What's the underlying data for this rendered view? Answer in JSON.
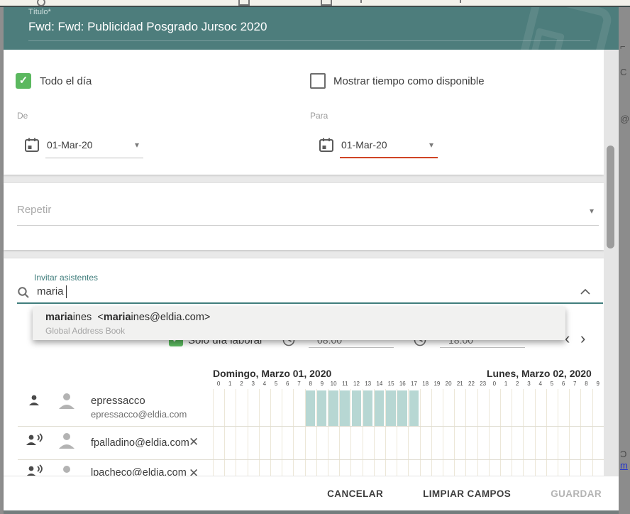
{
  "colors": {
    "accent_teal": "#4d7d7c",
    "accent_teal_dark": "#417e7d",
    "checkbox_green": "#5bb85f",
    "error_underline": "#cf4425",
    "busy_cell": "#b7d7d3",
    "link_blue": "#2233cc"
  },
  "background": {
    "fragments": [
      "⌐",
      "C",
      "@",
      "Ɔ",
      "m"
    ]
  },
  "dialog": {
    "header": {
      "field_label": "Título*",
      "title": "Fwd: Fwd: Publicidad Posgrado Jursoc 2020"
    },
    "datetime": {
      "allday_label": "Todo el día",
      "allday_check": "✓",
      "show_as_available_label": "Mostrar tiempo como disponible",
      "from_label": "De",
      "to_label": "Para",
      "from_date": "01-Mar-20",
      "to_date": "01-Mar-20",
      "caret": "▾"
    },
    "repeat": {
      "placeholder": "Repetir",
      "caret": "▾"
    },
    "attendees_section": {
      "label": "Invitar asistentes",
      "query": "maria"
    },
    "autocomplete": {
      "parts": [
        {
          "t": "maria",
          "b": true
        },
        {
          "t": "ines  <",
          "b": false
        },
        {
          "t": "maria",
          "b": true
        },
        {
          "t": "ines@eldia.com>",
          "b": false
        }
      ],
      "source": "Global Address Book"
    },
    "workday": {
      "label": "Sólo día laboral",
      "check": "✓",
      "start": "08:00",
      "end": "18:00",
      "prev": "‹",
      "next": "›"
    },
    "footer": {
      "cancel": "CANCELAR",
      "clear": "LIMPIAR CAMPOS",
      "save": "GUARDAR"
    }
  },
  "scheduler": {
    "day1_header": "Domingo, Marzo 01, 2020",
    "day2_header": "Lunes, Marzo 02, 2020",
    "hours_day1": [
      "0",
      "1",
      "2",
      "3",
      "4",
      "5",
      "6",
      "7",
      "8",
      "9",
      "10",
      "11",
      "12",
      "13",
      "14",
      "15",
      "16",
      "17",
      "18",
      "19",
      "20",
      "21",
      "22",
      "23"
    ],
    "hours_day2": [
      "0",
      "1",
      "2",
      "3",
      "4",
      "5",
      "6",
      "7",
      "8",
      "9",
      "10"
    ],
    "busy_blocks": [
      {
        "attendee": "epressacco",
        "day": 1,
        "from_hour": 8,
        "to_hour": 18
      }
    ],
    "attendees": [
      {
        "name": "epressacco",
        "email": "epressacco@eldia.com",
        "role": "organizer",
        "removable": false,
        "remove_glyph": ""
      },
      {
        "name": "",
        "email": "fpalladino@eldia.com",
        "role": "attendee",
        "removable": true,
        "remove_glyph": "✕"
      },
      {
        "name": "",
        "email": "lpacheco@eldia.com",
        "role": "attendee",
        "removable": true,
        "remove_glyph": "✕"
      }
    ]
  }
}
